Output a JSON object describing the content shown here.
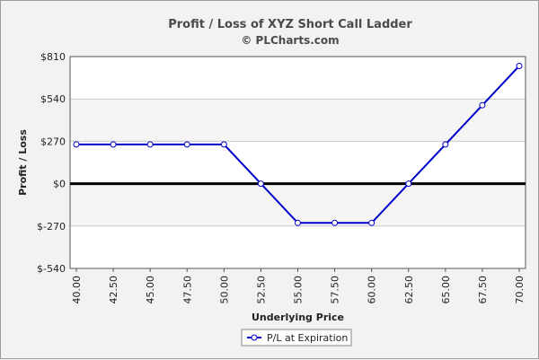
{
  "chart_data": {
    "type": "line",
    "title": "Profit / Loss of XYZ Short Call Ladder",
    "subtitle": "© PLCharts.com",
    "xlabel": "Underlying Price",
    "ylabel": "Profit / Loss",
    "categories": [
      "40.00",
      "42.50",
      "45.00",
      "47.50",
      "50.00",
      "52.50",
      "55.00",
      "57.50",
      "60.00",
      "62.50",
      "65.00",
      "67.50",
      "70.00"
    ],
    "series": [
      {
        "name": "P/L at Expiration",
        "color": "#0000cc",
        "values": [
          250,
          250,
          250,
          250,
          250,
          0,
          -250,
          -250,
          -250,
          0,
          250,
          500,
          750
        ]
      }
    ],
    "ylim": [
      -540,
      810
    ],
    "yticks": [
      -540,
      -270,
      0,
      270,
      540,
      810
    ],
    "ytick_labels": [
      "$-540",
      "$-270",
      "$0",
      "$270",
      "$540",
      "$810"
    ],
    "grid": true,
    "legend_position": "bottom-center"
  }
}
